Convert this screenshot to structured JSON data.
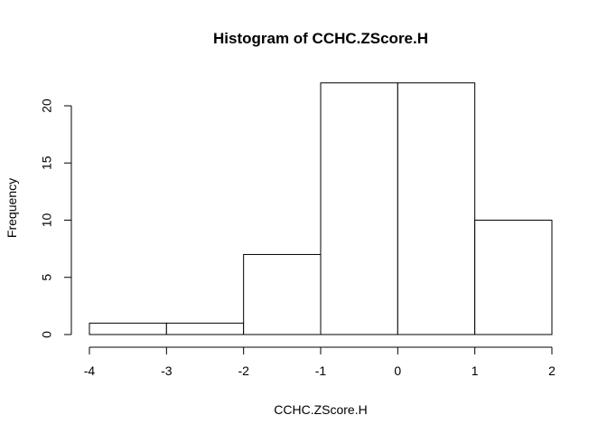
{
  "chart_data": {
    "type": "bar",
    "title": "Histogram of CCHC.ZScore.H",
    "xlabel": "CCHC.ZScore.H",
    "ylabel": "Frequency",
    "bins": [
      {
        "from": -4,
        "to": -3,
        "count": 1
      },
      {
        "from": -3,
        "to": -2,
        "count": 1
      },
      {
        "from": -2,
        "to": -1,
        "count": 7
      },
      {
        "from": -1,
        "to": 0,
        "count": 22
      },
      {
        "from": 0,
        "to": 1,
        "count": 22
      },
      {
        "from": 1,
        "to": 2,
        "count": 10
      }
    ],
    "xticks": [
      -4,
      -3,
      -2,
      -1,
      0,
      1,
      2
    ],
    "xtick_labels": [
      "-4",
      "-3",
      "-2",
      "-1",
      "0",
      "1",
      "2"
    ],
    "yticks": [
      0,
      5,
      10,
      15,
      20
    ],
    "ytick_labels": [
      "0",
      "5",
      "10",
      "15",
      "20"
    ],
    "xlim": [
      -4,
      2
    ],
    "ylim": [
      0,
      20
    ],
    "grid": false,
    "legend": "none",
    "bar_fill": "#ffffff",
    "bar_stroke": "#000000"
  }
}
